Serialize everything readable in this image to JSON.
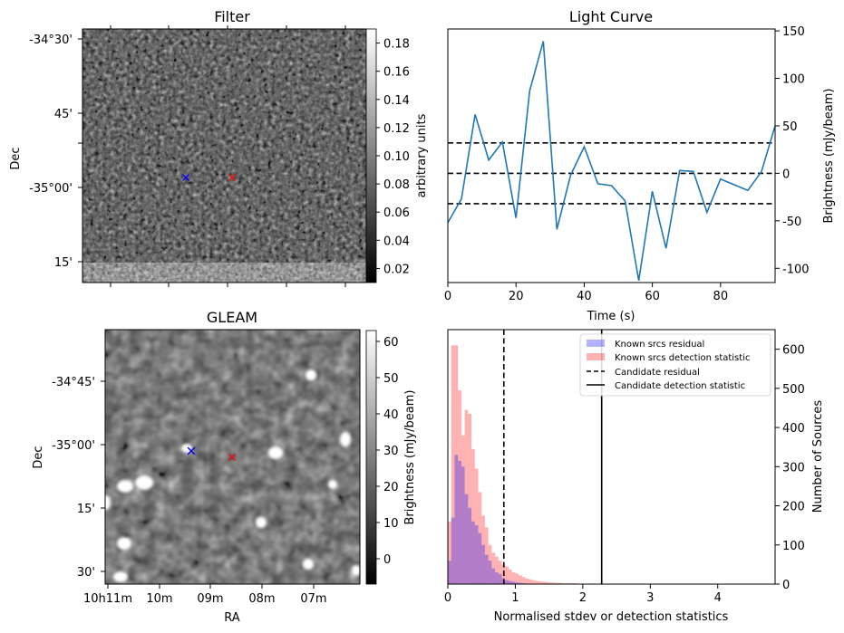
{
  "figure": {
    "filter": {
      "title": "Filter",
      "ylabel": "Dec",
      "yticks": [
        "-34°30'",
        "45'",
        "-35°00'",
        "15'"
      ],
      "colorbar_label": "arbitrary units",
      "colorbar_range": [
        0.01,
        0.19
      ],
      "colorbar_ticks": [
        "0.02",
        "0.04",
        "0.06",
        "0.08",
        "0.10",
        "0.12",
        "0.14",
        "0.16",
        "0.18"
      ],
      "colors": {
        "candidate": "#ff0000",
        "position": "#0000ff"
      }
    },
    "gleam": {
      "title": "GLEAM",
      "xlabel": "RA",
      "ylabel": "Dec",
      "xticks": [
        "10h11m",
        "10m",
        "09m",
        "08m",
        "07m"
      ],
      "yticks": [
        "-34°45'",
        "-35°00'",
        "15'",
        "30'"
      ],
      "colorbar_label": "Brightness (mJy/beam)",
      "colorbar_range": [
        -7,
        63
      ],
      "colorbar_ticks": [
        "0",
        "10",
        "20",
        "30",
        "40",
        "50",
        "60"
      ]
    }
  },
  "chart_data": [
    {
      "type": "line",
      "title": "Light Curve",
      "xlabel": "Time (s)",
      "ylabel": "Brightness (mJy/beam)",
      "xlim": [
        0,
        96
      ],
      "ylim": [
        -115,
        152
      ],
      "xticks": [
        0,
        20,
        40,
        60,
        80
      ],
      "yticks": [
        -100,
        -50,
        0,
        50,
        100,
        150
      ],
      "line_color": "#1f77b4",
      "series": [
        {
          "name": "Light curve",
          "x": [
            0,
            4,
            8,
            12,
            16,
            20,
            24,
            28,
            32,
            36,
            40,
            44,
            48,
            52,
            56,
            60,
            64,
            68,
            72,
            76,
            80,
            84,
            88,
            92,
            96
          ],
          "values": [
            -52,
            -27,
            62,
            14,
            33,
            -47,
            87,
            139,
            -59,
            -2,
            28,
            -11,
            -13,
            -29,
            -113,
            -19,
            -79,
            3,
            2,
            -41,
            -6,
            -12,
            -18,
            2,
            50
          ]
        }
      ],
      "hlines": [
        {
          "name": "upper threshold",
          "value": 32
        },
        {
          "name": "mean",
          "value": 0
        },
        {
          "name": "lower threshold",
          "value": -32
        }
      ]
    },
    {
      "type": "histogram",
      "title": "",
      "xlabel": "Normalised stdev or detection statistics",
      "ylabel": "Number of Sources",
      "xlim": [
        0,
        4.85
      ],
      "ylim": [
        0,
        650
      ],
      "xticks": [
        0,
        1,
        2,
        3,
        4
      ],
      "yticks": [
        0,
        100,
        200,
        300,
        400,
        500,
        600
      ],
      "bin_width": 0.05,
      "series": [
        {
          "name": "Known srcs residual",
          "color": "#0000ff",
          "alpha": 0.3,
          "values": [
            60,
            170,
            330,
            315,
            300,
            230,
            195,
            160,
            150,
            130,
            100,
            75,
            60,
            40,
            30,
            25,
            15,
            10,
            8,
            6,
            4,
            3,
            2,
            1,
            1
          ]
        },
        {
          "name": "Known srcs detection statistic",
          "color": "#ff0000",
          "alpha": 0.3,
          "values": [
            160,
            610,
            610,
            495,
            380,
            445,
            435,
            345,
            295,
            235,
            175,
            145,
            100,
            80,
            70,
            60,
            50,
            45,
            37,
            30,
            27,
            22,
            18,
            14,
            12,
            10,
            8,
            7,
            6,
            5,
            4,
            4,
            3,
            3,
            2,
            2,
            2,
            2,
            1,
            1,
            1,
            1,
            1,
            1,
            1,
            1
          ]
        }
      ],
      "vlines": [
        {
          "name": "Candidate residual",
          "value": 0.83,
          "style": "dashed"
        },
        {
          "name": "Candidate detection statistic",
          "value": 2.28,
          "style": "solid"
        }
      ],
      "legend": {
        "position": "top-right",
        "entries": [
          {
            "label": "Known srcs residual",
            "kind": "patch",
            "color": "#0000ff"
          },
          {
            "label": "Known srcs detection statistic",
            "kind": "patch",
            "color": "#ff0000"
          },
          {
            "label": "Candidate residual",
            "kind": "dashed-line",
            "color": "#000000"
          },
          {
            "label": "Candidate detection statistic",
            "kind": "solid-line",
            "color": "#000000"
          }
        ]
      }
    }
  ]
}
